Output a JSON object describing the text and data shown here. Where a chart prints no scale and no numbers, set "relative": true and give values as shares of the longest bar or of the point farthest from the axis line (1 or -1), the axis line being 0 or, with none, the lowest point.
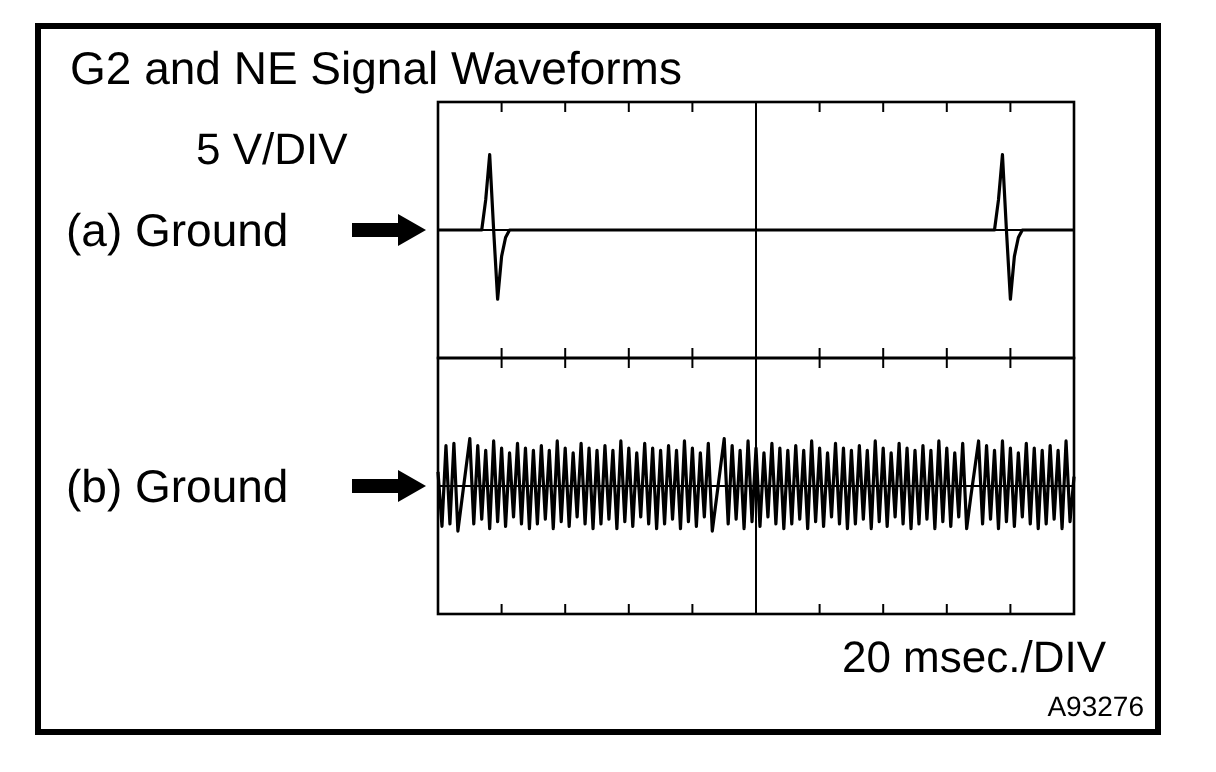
{
  "chart_data": [
    {
      "type": "line",
      "title": "G2 and NE Signal Waveforms",
      "ylabel": "5 V/DIV",
      "relative": true,
      "categories": [
        null,
        null,
        null,
        null,
        null,
        null,
        null,
        null,
        null,
        null,
        null,
        null,
        null,
        null,
        null,
        null,
        null,
        null,
        null,
        null,
        null,
        null,
        null,
        null,
        null,
        null,
        null,
        null,
        null,
        null,
        null,
        null,
        null,
        null,
        null,
        null,
        null,
        null,
        null,
        null,
        null,
        null,
        null,
        null,
        null,
        null,
        null,
        null,
        null,
        null,
        null,
        null,
        null,
        null,
        null,
        null,
        null,
        null,
        null,
        null,
        null,
        null,
        null,
        null,
        null,
        null,
        null,
        null,
        null,
        null,
        null,
        null,
        null,
        null,
        null,
        null,
        null,
        null,
        null,
        null,
        null,
        null,
        null,
        null,
        null,
        null,
        null,
        null,
        null,
        null,
        null,
        null,
        null,
        null,
        null,
        null,
        null,
        null,
        null,
        null,
        null,
        null,
        null,
        null,
        null,
        null,
        null,
        null,
        null,
        null,
        null,
        null,
        null,
        null,
        null,
        null,
        null,
        null,
        null,
        null,
        null,
        null,
        null,
        null,
        null,
        null,
        null,
        null,
        null,
        null,
        null,
        null,
        null,
        null,
        null,
        null,
        null,
        null,
        null,
        null,
        null,
        null,
        null,
        null,
        null,
        null,
        null,
        null,
        null,
        null,
        null,
        null,
        null,
        null,
        null,
        null,
        null,
        null,
        null,
        null,
        null
      ],
      "annotations": [
        "(a) Ground"
      ],
      "series": [
        {
          "color": "#000000",
          "values": [
            0,
            0,
            0,
            0,
            0,
            0,
            0,
            0,
            0,
            0,
            0,
            0,
            0.4,
            1.0,
            0,
            -0.92,
            -0.35,
            -0.1,
            0,
            0,
            0,
            0,
            0,
            0,
            0,
            0,
            0,
            0,
            0,
            0,
            0,
            0,
            0,
            0,
            0,
            0,
            0,
            0,
            0,
            0,
            0,
            0,
            0,
            0,
            0,
            0,
            0,
            0,
            0,
            0,
            0,
            0,
            0,
            0,
            0,
            0,
            0,
            0,
            0,
            0,
            0,
            0,
            0,
            0,
            0,
            0,
            0,
            0,
            0,
            0,
            0,
            0,
            0,
            0,
            0,
            0,
            0,
            0,
            0,
            0,
            0,
            0,
            0,
            0,
            0,
            0,
            0,
            0,
            0,
            0,
            0,
            0,
            0,
            0,
            0,
            0,
            0,
            0,
            0,
            0,
            0,
            0,
            0,
            0,
            0,
            0,
            0,
            0,
            0,
            0,
            0,
            0,
            0,
            0,
            0,
            0,
            0,
            0,
            0,
            0,
            0,
            0,
            0,
            0,
            0,
            0,
            0,
            0,
            0,
            0,
            0,
            0,
            0,
            0,
            0,
            0,
            0,
            0,
            0,
            0,
            0,
            0.4,
            1.0,
            0,
            -0.92,
            -0.35,
            -0.1,
            0,
            0,
            0,
            0,
            0,
            0,
            0,
            0,
            0,
            0,
            0,
            0,
            0,
            0
          ]
        }
      ]
    },
    {
      "type": "line",
      "xlabel": "20 msec./DIV",
      "relative": true,
      "categories": [
        null,
        null,
        null,
        null,
        null,
        null,
        null,
        null,
        null,
        null,
        null,
        null,
        null,
        null,
        null,
        null,
        null,
        null,
        null,
        null,
        null,
        null,
        null,
        null,
        null,
        null,
        null,
        null,
        null,
        null,
        null,
        null,
        null,
        null,
        null,
        null,
        null,
        null,
        null,
        null,
        null,
        null,
        null,
        null,
        null,
        null,
        null,
        null,
        null,
        null,
        null,
        null,
        null,
        null,
        null,
        null,
        null,
        null,
        null,
        null,
        null,
        null,
        null,
        null,
        null,
        null,
        null,
        null,
        null,
        null,
        null,
        null,
        null,
        null,
        null,
        null,
        null,
        null,
        null,
        null,
        null,
        null,
        null,
        null,
        null,
        null,
        null,
        null,
        null,
        null,
        null,
        null,
        null,
        null,
        null,
        null,
        null,
        null,
        null,
        null,
        null,
        null,
        null,
        null,
        null,
        null,
        null,
        null,
        null,
        null,
        null,
        null,
        null,
        null,
        null,
        null,
        null,
        null,
        null,
        null,
        null,
        null,
        null,
        null,
        null,
        null,
        null,
        null,
        null,
        null,
        null,
        null,
        null,
        null,
        null,
        null,
        null,
        null,
        null,
        null,
        null,
        null,
        null,
        null,
        null,
        null,
        null,
        null,
        null,
        null,
        null,
        null,
        null,
        null,
        null,
        null,
        null,
        null,
        null,
        null,
        null
      ],
      "annotations": [
        "(b) Ground",
        "A93276"
      ],
      "series": [
        {
          "color": "#000000",
          "values": [
            0.3,
            -0.85,
            0.85,
            -0.8,
            0.9,
            -0.95,
            -0.3,
            0.35,
            1.0,
            -0.8,
            0.85,
            -0.7,
            0.75,
            -0.9,
            0.95,
            -0.75,
            0.8,
            -0.85,
            0.7,
            -0.65,
            0.9,
            -0.8,
            0.8,
            -0.9,
            0.75,
            -0.8,
            0.85,
            -0.7,
            0.75,
            -0.9,
            0.95,
            -0.75,
            0.8,
            -0.85,
            0.7,
            -0.65,
            0.9,
            -0.8,
            0.8,
            -0.9,
            0.75,
            -0.8,
            0.85,
            -0.7,
            0.75,
            -0.9,
            0.95,
            -0.75,
            0.8,
            -0.85,
            0.7,
            -0.65,
            0.9,
            -0.8,
            0.8,
            -0.9,
            0.75,
            -0.8,
            0.85,
            -0.7,
            0.75,
            -0.9,
            0.95,
            -0.75,
            0.8,
            -0.85,
            0.7,
            -0.65,
            0.9,
            -0.95,
            -0.3,
            0.35,
            1.0,
            -0.8,
            0.85,
            -0.7,
            0.75,
            -0.9,
            0.95,
            -0.75,
            0.8,
            -0.85,
            0.7,
            -0.65,
            0.9,
            -0.8,
            0.8,
            -0.9,
            0.75,
            -0.8,
            0.85,
            -0.7,
            0.75,
            -0.9,
            0.95,
            -0.75,
            0.8,
            -0.85,
            0.7,
            -0.65,
            0.9,
            -0.8,
            0.8,
            -0.9,
            0.75,
            -0.8,
            0.85,
            -0.7,
            0.75,
            -0.9,
            0.95,
            -0.75,
            0.8,
            -0.85,
            0.7,
            -0.65,
            0.9,
            -0.8,
            0.8,
            -0.9,
            0.75,
            -0.8,
            0.85,
            -0.7,
            0.75,
            -0.9,
            0.95,
            -0.75,
            0.8,
            -0.85,
            0.7,
            -0.65,
            0.9,
            -0.9,
            -0.25,
            0.35,
            0.95,
            -0.8,
            0.85,
            -0.7,
            0.75,
            -0.9,
            0.95,
            -0.75,
            0.8,
            -0.85,
            0.7,
            -0.65,
            0.9,
            -0.8,
            0.8,
            -0.9,
            0.75,
            -0.8,
            0.85,
            -0.7,
            0.75,
            -0.9,
            0.95,
            -0.75,
            0.2
          ]
        }
      ]
    }
  ]
}
